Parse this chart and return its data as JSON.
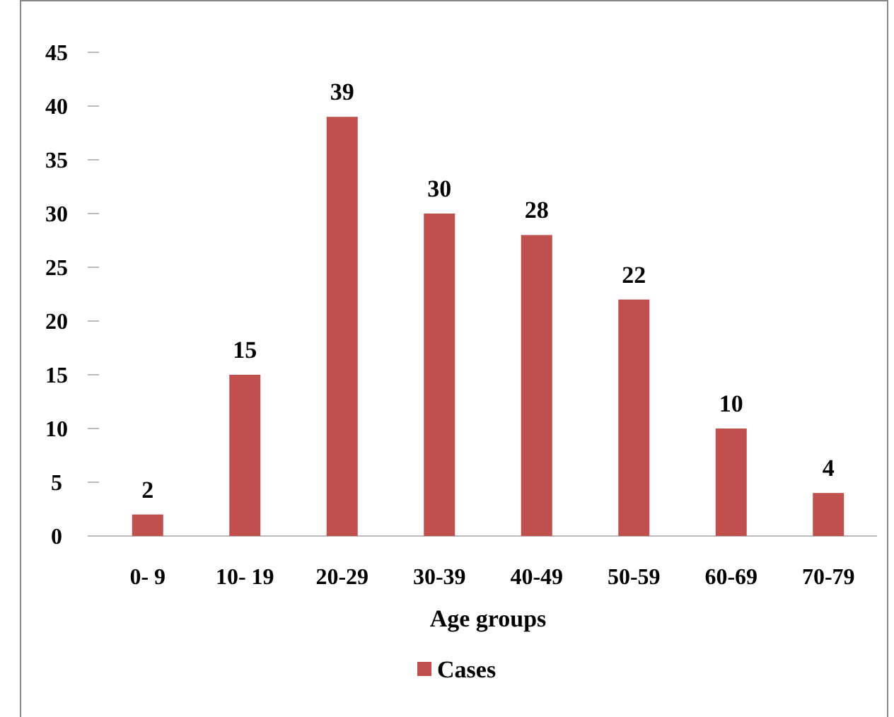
{
  "chart_data": {
    "type": "bar",
    "xlabel": "Age groups",
    "categories": [
      "0- 9",
      "10- 19",
      "20-29",
      "30-39",
      "40-49",
      "50-59",
      "60-69",
      "70-79"
    ],
    "series": [
      {
        "name": "Cases",
        "color": "#c0504d",
        "values": [
          2,
          15,
          39,
          30,
          28,
          22,
          10,
          4
        ]
      }
    ],
    "ylim": [
      0,
      45
    ],
    "yticks": [
      0,
      5,
      10,
      15,
      20,
      25,
      30,
      35,
      40,
      45
    ],
    "data_labels": true,
    "grid": false,
    "legend": "bottom"
  }
}
